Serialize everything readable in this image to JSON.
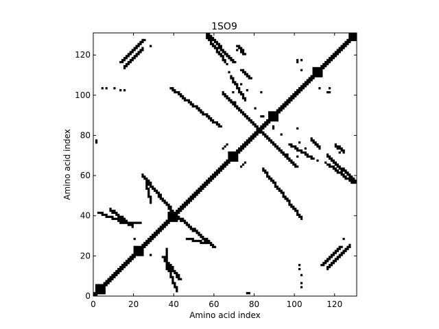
{
  "chart_data": {
    "type": "heatmap",
    "title": "1SO9",
    "xlabel": "Amino acid index",
    "ylabel": "Amino acid index",
    "xlim": [
      0,
      131
    ],
    "ylim": [
      0,
      131
    ],
    "xticks": [
      0,
      20,
      40,
      60,
      80,
      100,
      120
    ],
    "yticks": [
      0,
      20,
      40,
      60,
      80,
      100,
      120
    ],
    "colormap": {
      "contact": "#000000",
      "no_contact": "#ffffff"
    },
    "grid": false,
    "diagonal_band": {
      "start": 0,
      "end": 131,
      "half_width": 1
    },
    "clusters": [
      [
        3,
        3
      ],
      [
        22,
        22
      ],
      [
        39,
        39
      ],
      [
        69,
        69
      ],
      [
        89,
        89
      ],
      [
        111,
        111
      ],
      [
        129,
        129
      ]
    ],
    "strands": [
      [
        [
          13,
          116
        ],
        [
          24,
          127
        ]
      ],
      [
        [
          55,
          131
        ],
        [
          69,
          116
        ]
      ],
      [
        [
          38,
          103
        ],
        [
          62,
          84
        ]
      ],
      [
        [
          71,
          124
        ],
        [
          74,
          120
        ]
      ],
      [
        [
          73,
          112
        ],
        [
          77,
          108
        ]
      ],
      [
        [
          83,
          81
        ],
        [
          100,
          64
        ]
      ],
      [
        [
          97,
          75
        ],
        [
          108,
          68
        ]
      ],
      [
        [
          116,
          65
        ],
        [
          128,
          56
        ]
      ],
      [
        [
          13,
          36
        ],
        [
          22,
          36
        ]
      ],
      [
        [
          2,
          41
        ],
        [
          15,
          36
        ]
      ],
      [
        [
          24,
          59
        ],
        [
          39,
          41
        ]
      ],
      [
        [
          46,
          28
        ],
        [
          55,
          26
        ]
      ],
      [
        [
          113,
          15
        ],
        [
          122,
          24
        ]
      ],
      [
        [
          34,
          19
        ],
        [
          42,
          8
        ]
      ]
    ],
    "points": [
      [
        6,
        103
      ],
      [
        13,
        102
      ],
      [
        15,
        102
      ],
      [
        69,
        101
      ],
      [
        70,
        96
      ],
      [
        80,
        93
      ],
      [
        84,
        89
      ],
      [
        101,
        116
      ],
      [
        101,
        117
      ],
      [
        103,
        112
      ],
      [
        117,
        103
      ],
      [
        102,
        76
      ],
      [
        105,
        73
      ],
      [
        122,
        71
      ],
      [
        111,
        67
      ],
      [
        115,
        66
      ],
      [
        1,
        76
      ],
      [
        66,
        75
      ],
      [
        73,
        64
      ],
      [
        65,
        74
      ],
      [
        20,
        28
      ],
      [
        22,
        23
      ],
      [
        60,
        24
      ],
      [
        83,
        89
      ],
      [
        101,
        83
      ],
      [
        103,
        4
      ],
      [
        103,
        6
      ],
      [
        103,
        10
      ],
      [
        77,
        1
      ],
      [
        123,
        24
      ],
      [
        124,
        28
      ]
    ]
  }
}
